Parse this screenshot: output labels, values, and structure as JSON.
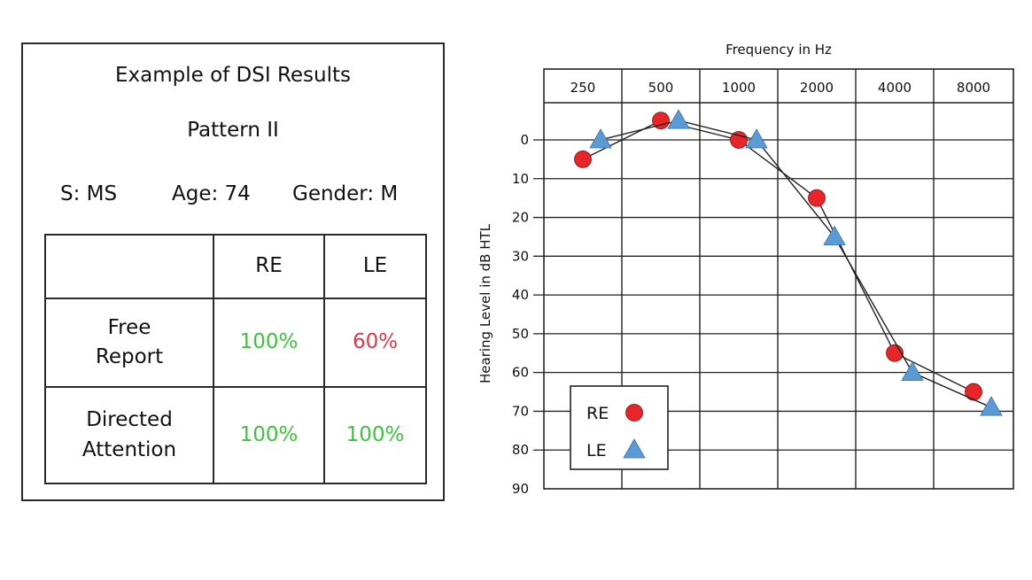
{
  "panel": {
    "title": "Example of DSI Results",
    "pattern": "Pattern II",
    "subject": "S: MS",
    "age": "Age: 74",
    "gender": "Gender: M",
    "table": {
      "col_headers": [
        "",
        "RE",
        "LE"
      ],
      "rows": [
        {
          "label_line1": "Free",
          "label_line2": "Report",
          "re": "100%",
          "le": "60%",
          "re_color": "#3cc43c",
          "le_color": "#e0384a"
        },
        {
          "label_line1": "Directed",
          "label_line2": "Attention",
          "re": "100%",
          "le": "100%",
          "re_color": "#3cc43c",
          "le_color": "#3cc43c"
        }
      ]
    }
  },
  "chart_data": {
    "type": "line",
    "title": "",
    "xlabel": "Frequency in Hz",
    "ylabel": "Hearing Level in dB HTL",
    "categories": [
      "250",
      "500",
      "1000",
      "2000",
      "4000",
      "8000"
    ],
    "yticks": [
      "0",
      "10",
      "20",
      "30",
      "40",
      "50",
      "60",
      "70",
      "80",
      "90"
    ],
    "ylim": [
      90,
      -10
    ],
    "y_inverted": true,
    "x_axis_position": "top",
    "grid": true,
    "legend_position": "bottom-left",
    "series": [
      {
        "name": "RE",
        "marker": "circle",
        "color": "#e8262a",
        "values": [
          5,
          -5,
          0,
          15,
          55,
          65
        ]
      },
      {
        "name": "LE",
        "marker": "triangle",
        "color": "#5b9bd5",
        "values": [
          0,
          -5,
          0,
          25,
          60,
          69
        ]
      }
    ]
  }
}
